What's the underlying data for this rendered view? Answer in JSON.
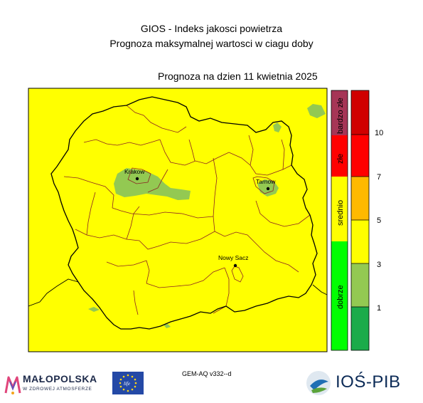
{
  "header": {
    "title_line1": "GIOS - Indeks jakosci powietrza",
    "title_line2": "Prognoza maksymalnej wartosci w ciagu doby",
    "forecast_date": "Prognoza na dzien  11 kwietnia 2025"
  },
  "map": {
    "cities": [
      {
        "name": "Krakow"
      },
      {
        "name": "Tarnow"
      },
      {
        "name": "Nowy Sacz"
      }
    ],
    "colors": {
      "background_index": "#ffff00",
      "patch": "#93c952",
      "border": "#000000",
      "district": "#8b2323"
    }
  },
  "legend_categories": [
    {
      "label": "bardzo złe",
      "color": "#a63556"
    },
    {
      "label": "złe",
      "color": "#ff0000"
    },
    {
      "label": "srednio",
      "color": "#ffff00"
    },
    {
      "label": "dobrze",
      "color": "#00ff00"
    }
  ],
  "legend_scale": {
    "bands": [
      {
        "color": "#d00000"
      },
      {
        "color": "#ff0000"
      },
      {
        "color": "#ffb900"
      },
      {
        "color": "#ffff00"
      },
      {
        "color": "#93c952"
      },
      {
        "color": "#1bab4a"
      }
    ],
    "labels": [
      "10",
      "7",
      "5",
      "3",
      "1"
    ]
  },
  "footer": {
    "model": "GEM-AQ v332--d",
    "malopolska_name": "MAŁOPOLSKA",
    "malopolska_sub": "W ZDROWEJ ATMOSFERZE",
    "eu_flag_text": "life",
    "ios_name": "IOŚ-PIB"
  }
}
